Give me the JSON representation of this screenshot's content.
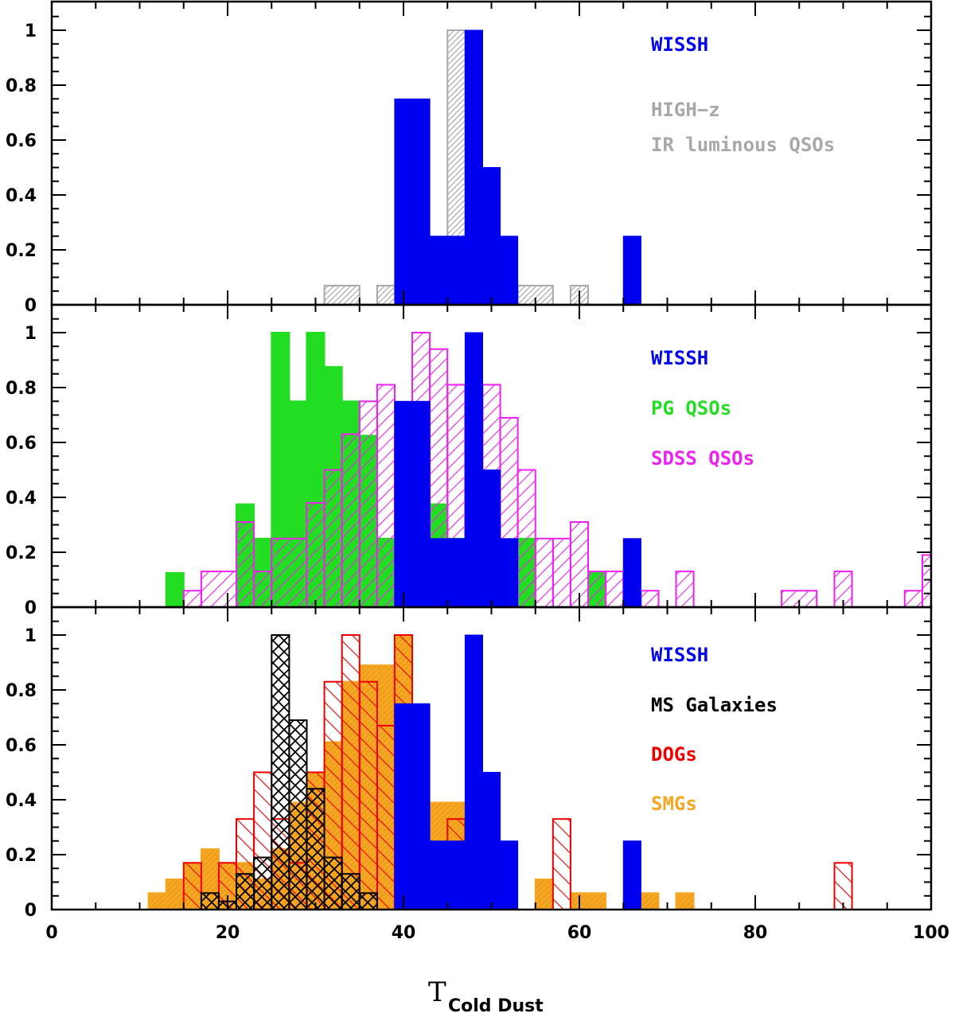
{
  "colors": {
    "wissh": "#0000f0",
    "highz": "#a8a8a8",
    "pg": "#22dd22",
    "sdss": "#ee22ee",
    "ms": "#000000",
    "dogs": "#ee0000",
    "smgs": "#f5a623"
  },
  "chart_data": [
    {
      "type": "histogram",
      "panel": "top",
      "xlim": [
        0,
        100
      ],
      "ylim": [
        0,
        1.1
      ],
      "yticks": [
        "0",
        "0.2",
        "0.4",
        "0.6",
        "0.8",
        "1"
      ],
      "legend": [
        {
          "label": "WISSH",
          "key": "wissh"
        },
        {
          "label": "HIGH−z",
          "key": "highz"
        },
        {
          "label": "IR luminous QSOs",
          "key": "highz"
        }
      ],
      "series": [
        {
          "name": "HIGH-z IR luminous QSOs",
          "key": "highz",
          "style": "hatch-fine",
          "bins": [
            [
              31,
              35,
              0.07
            ],
            [
              37,
              41,
              0.07
            ],
            [
              45,
              47,
              1.0
            ],
            [
              47,
              49,
              0.07
            ],
            [
              49,
              51,
              0.13
            ],
            [
              51,
              53,
              0.07
            ],
            [
              53,
              57,
              0.07
            ],
            [
              59,
              61,
              0.07
            ]
          ]
        },
        {
          "name": "WISSH",
          "key": "wissh",
          "style": "solid",
          "bins": [
            [
              39,
              43,
              0.75
            ],
            [
              43,
              45,
              0.25
            ],
            [
              45,
              47,
              0.25
            ],
            [
              47,
              49,
              1.0
            ],
            [
              49,
              51,
              0.5
            ],
            [
              51,
              53,
              0.25
            ],
            [
              65,
              67,
              0.25
            ]
          ]
        }
      ]
    },
    {
      "type": "histogram",
      "panel": "middle",
      "xlim": [
        0,
        100
      ],
      "ylim": [
        0,
        1.1
      ],
      "yticks": [
        "0",
        "0.2",
        "0.4",
        "0.6",
        "0.8",
        "1"
      ],
      "legend": [
        {
          "label": "WISSH",
          "key": "wissh"
        },
        {
          "label": "PG QSOs",
          "key": "pg"
        },
        {
          "label": "SDSS QSOs",
          "key": "sdss"
        }
      ],
      "series": [
        {
          "name": "PG QSOs",
          "key": "pg",
          "style": "solid",
          "bins": [
            [
              13,
              15,
              0.125
            ],
            [
              21,
              23,
              0.375
            ],
            [
              23,
              25,
              0.25
            ],
            [
              25,
              27,
              1.0
            ],
            [
              27,
              29,
              0.75
            ],
            [
              29,
              31,
              1.0
            ],
            [
              31,
              33,
              0.875
            ],
            [
              33,
              35,
              0.75
            ],
            [
              35,
              37,
              0.625
            ],
            [
              37,
              39,
              0.25
            ],
            [
              43,
              45,
              0.375
            ],
            [
              45,
              47,
              0.25
            ],
            [
              53,
              55,
              0.25
            ],
            [
              61,
              63,
              0.125
            ]
          ]
        },
        {
          "name": "SDSS QSOs",
          "key": "sdss",
          "style": "hatch-wide",
          "bins": [
            [
              15,
              17,
              0.06
            ],
            [
              17,
              21,
              0.13
            ],
            [
              21,
              23,
              0.31
            ],
            [
              23,
              25,
              0.13
            ],
            [
              25,
              29,
              0.25
            ],
            [
              29,
              31,
              0.38
            ],
            [
              31,
              33,
              0.5
            ],
            [
              33,
              35,
              0.63
            ],
            [
              35,
              37,
              0.75
            ],
            [
              37,
              39,
              0.81
            ],
            [
              39,
              41,
              0.63
            ],
            [
              41,
              43,
              1.0
            ],
            [
              43,
              45,
              0.94
            ],
            [
              45,
              47,
              0.81
            ],
            [
              47,
              49,
              0.75
            ],
            [
              49,
              51,
              0.81
            ],
            [
              51,
              53,
              0.69
            ],
            [
              53,
              55,
              0.5
            ],
            [
              55,
              57,
              0.25
            ],
            [
              57,
              59,
              0.25
            ],
            [
              59,
              61,
              0.31
            ],
            [
              61,
              63,
              0.13
            ],
            [
              63,
              65,
              0.13
            ],
            [
              67,
              69,
              0.06
            ],
            [
              71,
              73,
              0.13
            ],
            [
              83,
              87,
              0.06
            ],
            [
              89,
              91,
              0.13
            ],
            [
              97,
              99,
              0.06
            ],
            [
              99,
              100,
              0.19
            ]
          ]
        },
        {
          "name": "WISSH",
          "key": "wissh",
          "style": "solid",
          "bins": [
            [
              39,
              43,
              0.75
            ],
            [
              43,
              45,
              0.25
            ],
            [
              45,
              47,
              0.25
            ],
            [
              47,
              49,
              1.0
            ],
            [
              49,
              51,
              0.5
            ],
            [
              51,
              53,
              0.25
            ],
            [
              65,
              67,
              0.25
            ]
          ]
        }
      ]
    },
    {
      "type": "histogram",
      "panel": "bottom",
      "xlim": [
        0,
        100
      ],
      "ylim": [
        0,
        1.1
      ],
      "xticks": [
        "0",
        "20",
        "40",
        "60",
        "80",
        "100"
      ],
      "yticks": [
        "0",
        "0.2",
        "0.4",
        "0.6",
        "0.8",
        "1"
      ],
      "xlabel": "T",
      "xlabel_sub": "Cold Dust",
      "legend": [
        {
          "label": "WISSH",
          "key": "wissh"
        },
        {
          "label": "MS Galaxies",
          "key": "ms"
        },
        {
          "label": "DOGs",
          "key": "dogs"
        },
        {
          "label": "SMGs",
          "key": "smgs"
        }
      ],
      "series": [
        {
          "name": "SMGs",
          "key": "smgs",
          "style": "solid-hatch",
          "bins": [
            [
              11,
              13,
              0.06
            ],
            [
              13,
              15,
              0.11
            ],
            [
              15,
              17,
              0.17
            ],
            [
              17,
              19,
              0.22
            ],
            [
              19,
              23,
              0.17
            ],
            [
              23,
              25,
              0.11
            ],
            [
              25,
              27,
              0.22
            ],
            [
              27,
              29,
              0.39
            ],
            [
              29,
              31,
              0.5
            ],
            [
              31,
              33,
              0.61
            ],
            [
              33,
              35,
              0.83
            ],
            [
              35,
              37,
              0.89
            ],
            [
              37,
              39,
              0.89
            ],
            [
              39,
              41,
              1.0
            ],
            [
              43,
              47,
              0.39
            ],
            [
              55,
              57,
              0.11
            ],
            [
              59,
              63,
              0.06
            ],
            [
              67,
              69,
              0.06
            ],
            [
              71,
              73,
              0.06
            ]
          ]
        },
        {
          "name": "DOGs",
          "key": "dogs",
          "style": "hatch-wide",
          "bins": [
            [
              15,
              17,
              0.17
            ],
            [
              19,
              21,
              0.17
            ],
            [
              21,
              23,
              0.33
            ],
            [
              23,
              25,
              0.5
            ],
            [
              25,
              27,
              0.33
            ],
            [
              27,
              29,
              0.17
            ],
            [
              29,
              31,
              0.5
            ],
            [
              31,
              33,
              0.83
            ],
            [
              33,
              35,
              1.0
            ],
            [
              35,
              37,
              0.83
            ],
            [
              37,
              39,
              0.67
            ],
            [
              39,
              41,
              1.0
            ],
            [
              45,
              47,
              0.33
            ],
            [
              57,
              59,
              0.33
            ],
            [
              89,
              91,
              0.17
            ]
          ]
        },
        {
          "name": "MS Galaxies",
          "key": "ms",
          "style": "crosshatch",
          "bins": [
            [
              17,
              19,
              0.06
            ],
            [
              19,
              21,
              0.03
            ],
            [
              21,
              23,
              0.13
            ],
            [
              23,
              25,
              0.19
            ],
            [
              25,
              27,
              1.0
            ],
            [
              27,
              29,
              0.69
            ],
            [
              29,
              31,
              0.44
            ],
            [
              31,
              33,
              0.19
            ],
            [
              33,
              35,
              0.13
            ],
            [
              35,
              37,
              0.06
            ]
          ]
        },
        {
          "name": "WISSH",
          "key": "wissh",
          "style": "solid",
          "bins": [
            [
              39,
              43,
              0.75
            ],
            [
              43,
              45,
              0.25
            ],
            [
              45,
              47,
              0.25
            ],
            [
              47,
              49,
              1.0
            ],
            [
              49,
              51,
              0.5
            ],
            [
              51,
              53,
              0.25
            ],
            [
              65,
              67,
              0.25
            ]
          ]
        }
      ]
    }
  ]
}
